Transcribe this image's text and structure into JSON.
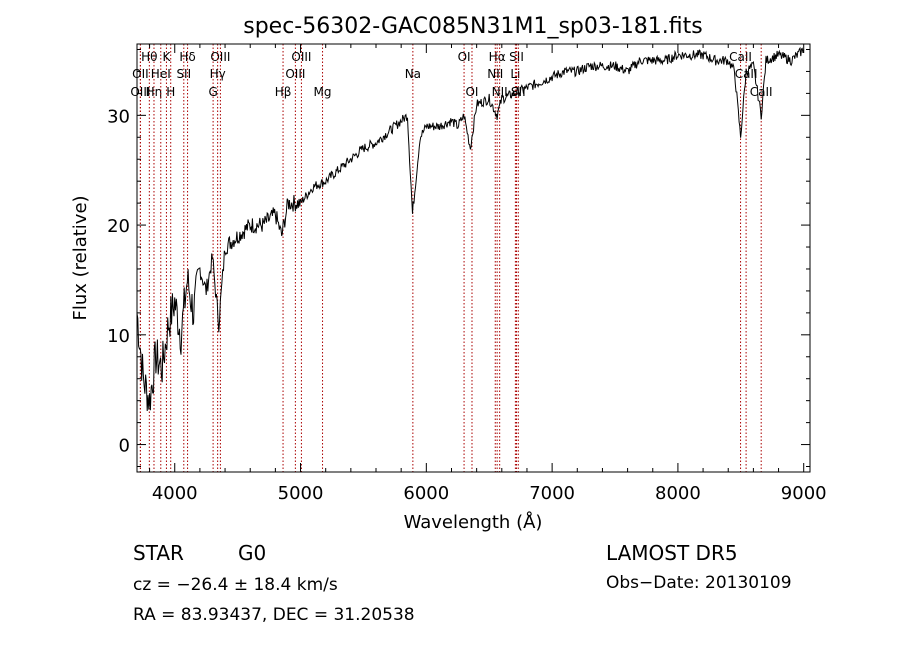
{
  "chart_data": {
    "type": "line",
    "title": "spec-56302-GAC085N31M1_sp03-181.fits",
    "xlabel": "Wavelength (Å)",
    "ylabel": "Flux (relative)",
    "xlim": [
      3700,
      9050
    ],
    "ylim": [
      -2.5,
      36.5
    ],
    "x_ticks": [
      "4000",
      "5000",
      "6000",
      "7000",
      "8000",
      "9000"
    ],
    "y_ticks": [
      "0",
      "10",
      "20",
      "30"
    ],
    "grid": false,
    "legend": "none",
    "line_color": "#000000",
    "marker_color": "#aa0000",
    "series": [
      {
        "x": [
          3700,
          3750,
          3800,
          3850,
          3900,
          3950,
          4000,
          4050,
          4100,
          4150,
          4200,
          4250,
          4300,
          4350,
          4400,
          4500,
          4600,
          4700,
          4800,
          4850,
          4900,
          5000,
          5100,
          5200,
          5300,
          5400,
          5500,
          5600,
          5700,
          5800,
          5850,
          5890,
          5950,
          6000,
          6100,
          6200,
          6250,
          6300,
          6350,
          6400,
          6500,
          6563,
          6600,
          6700,
          6800,
          6900,
          7000,
          7100,
          7200,
          7300,
          7400,
          7500,
          7600,
          7700,
          7800,
          7900,
          8000,
          8100,
          8200,
          8300,
          8400,
          8450,
          8498,
          8542,
          8600,
          8662,
          8700,
          8800,
          8900,
          9000
        ],
        "y": [
          12,
          6,
          4,
          8,
          7,
          11,
          13,
          10,
          15,
          12,
          16,
          14,
          17,
          11,
          18,
          19,
          20,
          20,
          21,
          19,
          22,
          22,
          23.5,
          24,
          25,
          26,
          27,
          27.5,
          28.5,
          29.5,
          30,
          21,
          28,
          29,
          29,
          29.5,
          29,
          30,
          27,
          31,
          31.5,
          30,
          31.5,
          32,
          32.5,
          33,
          33.5,
          34,
          34,
          34.5,
          34.5,
          34.5,
          34,
          35,
          35,
          35,
          35.5,
          35.5,
          35.5,
          35,
          35,
          34,
          28,
          34,
          34.5,
          30,
          35,
          35.5,
          35,
          36
        ]
      }
    ],
    "lines": [
      {
        "name": "Hθ",
        "x": 3798,
        "row": 1
      },
      {
        "name": "OII",
        "x": 3727,
        "row": 2
      },
      {
        "name": "OIII",
        "x": 3727,
        "row": 3
      },
      {
        "name": "Hη",
        "x": 3835,
        "row": 3
      },
      {
        "name": "HeI",
        "x": 3889,
        "row": 2
      },
      {
        "name": "K",
        "x": 3934,
        "row": 1
      },
      {
        "name": "H",
        "x": 3968,
        "row": 3
      },
      {
        "name": "Hδ",
        "x": 4102,
        "row": 1
      },
      {
        "name": "SII",
        "x": 4072,
        "row": 2
      },
      {
        "name": "OIII",
        "x": 4363,
        "row": 1
      },
      {
        "name": "Hγ",
        "x": 4341,
        "row": 2
      },
      {
        "name": "G",
        "x": 4305,
        "row": 3
      },
      {
        "name": "Hβ",
        "x": 4861,
        "row": 3
      },
      {
        "name": "OIII",
        "x": 4959,
        "row": 2
      },
      {
        "name": "OIII",
        "x": 5007,
        "row": 1
      },
      {
        "name": "Mg",
        "x": 5175,
        "row": 3
      },
      {
        "name": "Na",
        "x": 5893,
        "row": 2
      },
      {
        "name": "OI",
        "x": 6300,
        "row": 1
      },
      {
        "name": "OI",
        "x": 6363,
        "row": 3
      },
      {
        "name": "Hα",
        "x": 6563,
        "row": 1
      },
      {
        "name": "NII",
        "x": 6548,
        "row": 2
      },
      {
        "name": "NII",
        "x": 6583,
        "row": 3
      },
      {
        "name": "SII",
        "x": 6717,
        "row": 1
      },
      {
        "name": "Li",
        "x": 6708,
        "row": 2
      },
      {
        "name": "SII",
        "x": 6731,
        "row": 3
      },
      {
        "name": "CaII",
        "x": 8498,
        "row": 1
      },
      {
        "name": "CaII",
        "x": 8542,
        "row": 2
      },
      {
        "name": "CaII",
        "x": 8662,
        "row": 3
      }
    ]
  },
  "info": {
    "class": "STAR",
    "subclass": "G0",
    "survey": "LAMOST DR5",
    "cz": "cz = −26.4 ± 18.4 km/s",
    "obs_date": "Obs−Date: 20130109",
    "coords": "RA =  83.93437, DEC =  31.20538"
  }
}
